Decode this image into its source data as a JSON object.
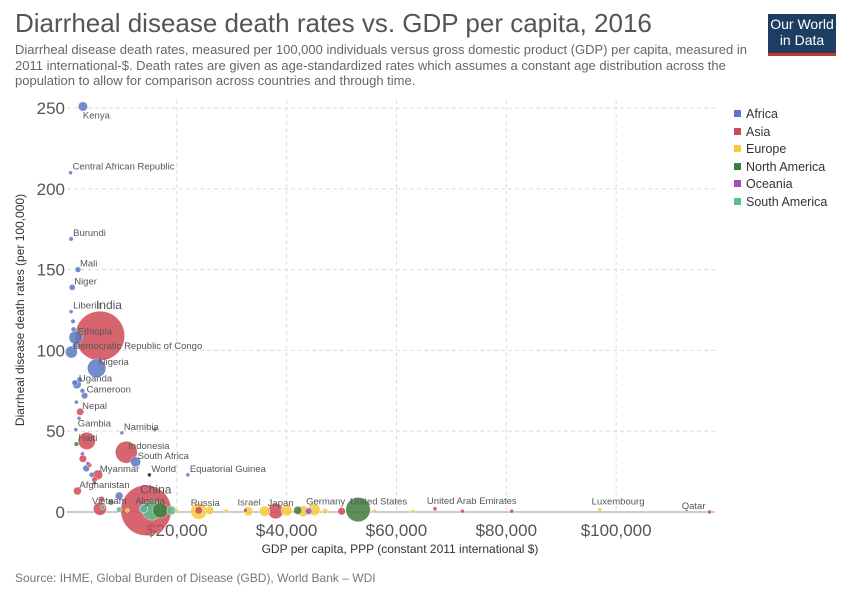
{
  "header": {
    "title": "Diarrheal disease death rates vs. GDP per capita, 2016",
    "subtitle": "Diarrheal disease death rates, measured per 100,000 individuals versus gross domestic product (GDP) per capita, measured in 2011 international-$. Death rates are given as age-standardized rates which assumes a constant age distribution across the population to allow for comparison across countries and through time.",
    "logo_line1": "Our World",
    "logo_line2": "in Data",
    "logo_color": "#1d3d63",
    "logo_accent": "#c0392b"
  },
  "footer": {
    "source": "Source: IHME, Global Burden of Disease (GBD), World Bank – WDI"
  },
  "legend": [
    {
      "label": "Africa",
      "color": "#5a78c3"
    },
    {
      "label": "Asia",
      "color": "#cf4a57"
    },
    {
      "label": "Europe",
      "color": "#f7c93c"
    },
    {
      "label": "North America",
      "color": "#3e7d3a"
    },
    {
      "label": "Oceania",
      "color": "#a34db5"
    },
    {
      "label": "South America",
      "color": "#58c08a"
    }
  ],
  "chart_data": {
    "type": "scatter",
    "title": "Diarrheal disease death rates vs. GDP per capita, 2016",
    "xlabel": "GDP per capita, PPP (constant 2011 international $)",
    "ylabel": "Diarrheal disease death rates (per 100,000)",
    "xlim": [
      0,
      118000
    ],
    "ylim": [
      0,
      255
    ],
    "x_ticks": [
      {
        "v": 20000,
        "label": "$20,000"
      },
      {
        "v": 40000,
        "label": "$40,000"
      },
      {
        "v": 60000,
        "label": "$60,000"
      },
      {
        "v": 80000,
        "label": "$80,000"
      },
      {
        "v": 100000,
        "label": "$100,000"
      }
    ],
    "y_ticks": [
      {
        "v": 0,
        "label": "0"
      },
      {
        "v": 50,
        "label": "50"
      },
      {
        "v": 100,
        "label": "100"
      },
      {
        "v": 150,
        "label": "150"
      },
      {
        "v": 200,
        "label": "200"
      },
      {
        "v": 250,
        "label": "250"
      }
    ],
    "grid": true,
    "series_colors": {
      "Africa": "#5a78c3",
      "Asia": "#cf4a57",
      "Europe": "#f7c93c",
      "North America": "#3e7d3a",
      "Oceania": "#a34db5",
      "South America": "#58c08a",
      "World": "#222222"
    },
    "points": [
      {
        "label": "Kenya",
        "region": "Africa",
        "gdp": 2900,
        "rate": 251,
        "pop": 48
      },
      {
        "label": "Central African Republic",
        "region": "Africa",
        "gdp": 650,
        "rate": 210,
        "pop": 4.6
      },
      {
        "label": "Burundi",
        "region": "Africa",
        "gdp": 750,
        "rate": 169,
        "pop": 10.5
      },
      {
        "label": "Mali",
        "region": "Africa",
        "gdp": 2000,
        "rate": 150,
        "pop": 18
      },
      {
        "label": "Niger",
        "region": "Africa",
        "gdp": 950,
        "rate": 139,
        "pop": 20
      },
      {
        "label": "Liberia",
        "region": "Africa",
        "gdp": 750,
        "rate": 124,
        "pop": 4.6
      },
      {
        "label": "India",
        "region": "Asia",
        "gdp": 6000,
        "rate": 109,
        "pop": 1324
      },
      {
        "label": "Ethiopia",
        "region": "Africa",
        "gdp": 1600,
        "rate": 108,
        "pop": 102
      },
      {
        "label": "Democratic Republic of Congo",
        "region": "Africa",
        "gdp": 800,
        "rate": 99,
        "pop": 79
      },
      {
        "label": "Nigeria",
        "region": "Africa",
        "gdp": 5400,
        "rate": 89,
        "pop": 186
      },
      {
        "label": "Uganda",
        "region": "Africa",
        "gdp": 1800,
        "rate": 79,
        "pop": 41
      },
      {
        "label": "Cameroon",
        "region": "Africa",
        "gdp": 3200,
        "rate": 72,
        "pop": 23
      },
      {
        "label": "Nepal",
        "region": "Asia",
        "gdp": 2400,
        "rate": 62,
        "pop": 29
      },
      {
        "label": "Gambia",
        "region": "Africa",
        "gdp": 1600,
        "rate": 51,
        "pop": 2
      },
      {
        "label": "Namibia",
        "region": "Africa",
        "gdp": 10000,
        "rate": 49,
        "pop": 2.5
      },
      {
        "label": "Haiti",
        "region": "North America",
        "gdp": 1700,
        "rate": 42,
        "pop": 11
      },
      {
        "label": "Indonesia",
        "region": "Asia",
        "gdp": 10800,
        "rate": 37,
        "pop": 261
      },
      {
        "label": "South Africa",
        "region": "Africa",
        "gdp": 12500,
        "rate": 31,
        "pop": 56
      },
      {
        "label": "Myanmar",
        "region": "Asia",
        "gdp": 5600,
        "rate": 23,
        "pop": 53
      },
      {
        "label": "World",
        "region": "World",
        "gdp": 15000,
        "rate": 23,
        "pop": 4
      },
      {
        "label": "Equatorial Guinea",
        "region": "Africa",
        "gdp": 22000,
        "rate": 23,
        "pop": 1.2
      },
      {
        "label": "Afghanistan",
        "region": "Asia",
        "gdp": 1900,
        "rate": 13,
        "pop": 35
      },
      {
        "label": "Vietnam",
        "region": "Asia",
        "gdp": 6000,
        "rate": 2,
        "pop": 94
      },
      {
        "label": "Algeria",
        "region": "Africa",
        "gdp": 13900,
        "rate": 2,
        "pop": 40
      },
      {
        "label": "China",
        "region": "Asia",
        "gdp": 14400,
        "rate": 1,
        "pop": 1379
      },
      {
        "label": "Russia",
        "region": "Europe",
        "gdp": 24000,
        "rate": 0.5,
        "pop": 144
      },
      {
        "label": "Israel",
        "region": "Asia",
        "gdp": 32500,
        "rate": 1,
        "pop": 8.5
      },
      {
        "label": "Japan",
        "region": "Asia",
        "gdp": 38000,
        "rate": 0.5,
        "pop": 127
      },
      {
        "label": "Germany",
        "region": "Europe",
        "gdp": 45000,
        "rate": 1.5,
        "pop": 82
      },
      {
        "label": "United States",
        "region": "North America",
        "gdp": 53000,
        "rate": 1.5,
        "pop": 323
      },
      {
        "label": "United Arab Emirates",
        "region": "Asia",
        "gdp": 67000,
        "rate": 2,
        "pop": 9.3
      },
      {
        "label": "Luxembourg",
        "region": "Europe",
        "gdp": 97000,
        "rate": 1.5,
        "pop": 0.6
      },
      {
        "label": "Qatar",
        "region": "Asia",
        "gdp": 117000,
        "rate": 0,
        "pop": 2.6
      },
      {
        "label": "",
        "region": "Africa",
        "gdp": 1500,
        "rate": 103,
        "pop": 18
      },
      {
        "label": "",
        "region": "Africa",
        "gdp": 1200,
        "rate": 113,
        "pop": 14
      },
      {
        "label": "",
        "region": "Africa",
        "gdp": 1100,
        "rate": 118,
        "pop": 11
      },
      {
        "label": "",
        "region": "Africa",
        "gdp": 2300,
        "rate": 82,
        "pop": 15
      },
      {
        "label": "",
        "region": "Africa",
        "gdp": 1400,
        "rate": 80,
        "pop": 16
      },
      {
        "label": "",
        "region": "Africa",
        "gdp": 2800,
        "rate": 75,
        "pop": 12
      },
      {
        "label": "",
        "region": "Africa",
        "gdp": 1700,
        "rate": 68,
        "pop": 7
      },
      {
        "label": "",
        "region": "Africa",
        "gdp": 2200,
        "rate": 58,
        "pop": 6
      },
      {
        "label": "",
        "region": "Africa",
        "gdp": 16000,
        "rate": 51,
        "pop": 2
      },
      {
        "label": "",
        "region": "Africa",
        "gdp": 3500,
        "rate": 27,
        "pop": 25
      },
      {
        "label": "",
        "region": "Africa",
        "gdp": 4500,
        "rate": 23,
        "pop": 14
      },
      {
        "label": "",
        "region": "Africa",
        "gdp": 9500,
        "rate": 10,
        "pop": 33
      },
      {
        "label": "",
        "region": "Asia",
        "gdp": 3600,
        "rate": 44,
        "pop": 163
      },
      {
        "label": "",
        "region": "Asia",
        "gdp": 2900,
        "rate": 33,
        "pop": 30
      },
      {
        "label": "",
        "region": "Asia",
        "gdp": 4100,
        "rate": 29,
        "pop": 11
      },
      {
        "label": "",
        "region": "Asia",
        "gdp": 5000,
        "rate": 20,
        "pop": 16
      },
      {
        "label": "",
        "region": "Asia",
        "gdp": 6300,
        "rate": 8,
        "pop": 18
      },
      {
        "label": "",
        "region": "Oceania",
        "gdp": 3800,
        "rate": 30,
        "pop": 8
      },
      {
        "label": "",
        "region": "Oceania",
        "gdp": 2800,
        "rate": 36,
        "pop": 0.6
      },
      {
        "label": "",
        "region": "North America",
        "gdp": 5000,
        "rate": 18,
        "pop": 6
      },
      {
        "label": "",
        "region": "North America",
        "gdp": 8000,
        "rate": 6,
        "pop": 17
      },
      {
        "label": "",
        "region": "North America",
        "gdp": 17000,
        "rate": 1,
        "pop": 128
      },
      {
        "label": "",
        "region": "South America",
        "gdp": 6500,
        "rate": 3,
        "pop": 11
      },
      {
        "label": "",
        "region": "South America",
        "gdp": 9500,
        "rate": 1.5,
        "pop": 16
      },
      {
        "label": "",
        "region": "South America",
        "gdp": 14000,
        "rate": 2,
        "pop": 32
      },
      {
        "label": "",
        "region": "South America",
        "gdp": 15500,
        "rate": 1,
        "pop": 207
      },
      {
        "label": "",
        "region": "South America",
        "gdp": 19000,
        "rate": 1,
        "pop": 44
      },
      {
        "label": "",
        "region": "Europe",
        "gdp": 11000,
        "rate": 1,
        "pop": 3
      },
      {
        "label": "",
        "region": "Europe",
        "gdp": 20000,
        "rate": 0.5,
        "pop": 9
      },
      {
        "label": "",
        "region": "Europe",
        "gdp": 26000,
        "rate": 1,
        "pop": 38
      },
      {
        "label": "",
        "region": "Europe",
        "gdp": 29000,
        "rate": 0.5,
        "pop": 10
      },
      {
        "label": "",
        "region": "Europe",
        "gdp": 33000,
        "rate": 0.5,
        "pop": 46
      },
      {
        "label": "",
        "region": "Europe",
        "gdp": 36000,
        "rate": 0.5,
        "pop": 60
      },
      {
        "label": "",
        "region": "Europe",
        "gdp": 40000,
        "rate": 1,
        "pop": 67
      },
      {
        "label": "",
        "region": "Europe",
        "gdp": 43000,
        "rate": 0.5,
        "pop": 66
      },
      {
        "label": "",
        "region": "Europe",
        "gdp": 47000,
        "rate": 0.5,
        "pop": 17
      },
      {
        "label": "",
        "region": "Europe",
        "gdp": 63000,
        "rate": 0.5,
        "pop": 5
      },
      {
        "label": "",
        "region": "Europe",
        "gdp": 56000,
        "rate": 0.5,
        "pop": 8
      },
      {
        "label": "",
        "region": "Asia",
        "gdp": 24000,
        "rate": 1,
        "pop": 31
      },
      {
        "label": "",
        "region": "Asia",
        "gdp": 50000,
        "rate": 0.5,
        "pop": 32
      },
      {
        "label": "",
        "region": "Asia",
        "gdp": 72000,
        "rate": 0.5,
        "pop": 4
      },
      {
        "label": "",
        "region": "Asia",
        "gdp": 81000,
        "rate": 0.5,
        "pop": 5.6
      },
      {
        "label": "",
        "region": "Oceania",
        "gdp": 44000,
        "rate": 0.5,
        "pop": 24
      },
      {
        "label": "",
        "region": "North America",
        "gdp": 42000,
        "rate": 1,
        "pop": 36
      }
    ]
  }
}
